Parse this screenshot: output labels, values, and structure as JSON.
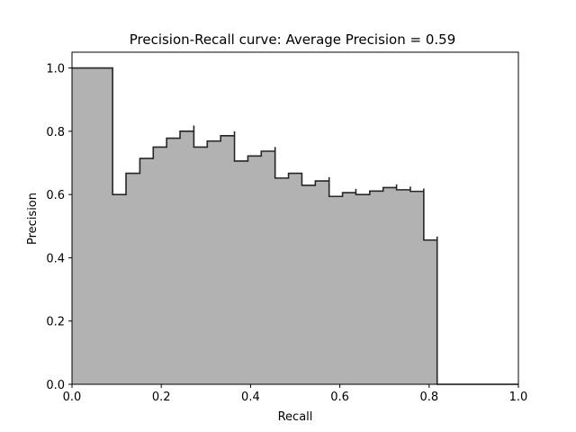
{
  "chart_data": {
    "type": "area",
    "title": "Precision-Recall curve: Average Precision =  0.59",
    "xlabel": "Recall",
    "ylabel": "Precision",
    "xlim": [
      0.0,
      1.0
    ],
    "ylim": [
      0.0,
      1.05
    ],
    "xticks": [
      "0.0",
      "0.2",
      "0.4",
      "0.6",
      "0.8",
      "1.0"
    ],
    "yticks": [
      "0.0",
      "0.2",
      "0.4",
      "0.6",
      "0.8",
      "1.0"
    ],
    "grid": false,
    "step": "post",
    "fill_color": "#b2b2b2",
    "line_color": "#262626",
    "series": [
      {
        "recall": [
          0.0,
          0.091,
          0.091,
          0.121,
          0.152,
          0.182,
          0.212,
          0.242,
          0.273,
          0.273,
          0.303,
          0.333,
          0.364,
          0.364,
          0.394,
          0.424,
          0.455,
          0.455,
          0.485,
          0.515,
          0.545,
          0.576,
          0.576,
          0.606,
          0.636,
          0.636,
          0.667,
          0.697,
          0.727,
          0.727,
          0.758,
          0.758,
          0.788,
          0.788,
          0.818,
          0.818,
          1.0
        ],
        "precision": [
          1.0,
          1.0,
          0.6,
          0.667,
          0.714,
          0.75,
          0.778,
          0.8,
          0.818,
          0.75,
          0.769,
          0.786,
          0.8,
          0.706,
          0.722,
          0.737,
          0.75,
          0.652,
          0.667,
          0.629,
          0.643,
          0.655,
          0.594,
          0.606,
          0.618,
          0.6,
          0.611,
          0.622,
          0.632,
          0.615,
          0.625,
          0.61,
          0.619,
          0.456,
          0.467,
          0.0,
          0.0
        ]
      }
    ]
  }
}
